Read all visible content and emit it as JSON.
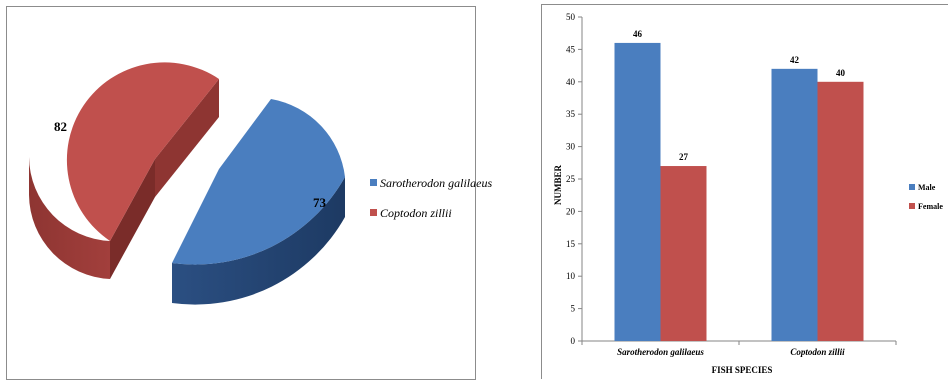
{
  "chart_data": [
    {
      "type": "pie",
      "slices": [
        {
          "label": "Sarotherodon galilaeus",
          "value": 73,
          "color": "#4a7ebf"
        },
        {
          "label": "Coptodon zillii",
          "value": 82,
          "color": "#c0504d"
        }
      ],
      "legend_position": "right",
      "three_d": true,
      "exploded": true
    },
    {
      "type": "bar",
      "categories": [
        "Sarotherodon galilaeus",
        "Coptodon zillii"
      ],
      "series": [
        {
          "name": "Male",
          "values": [
            46,
            42
          ],
          "color": "#4a7ebf"
        },
        {
          "name": "Female",
          "values": [
            27,
            40
          ],
          "color": "#c0504d"
        }
      ],
      "xlabel": "FISH SPECIES",
      "ylabel": "NUMBER",
      "ylim": [
        0,
        50
      ],
      "yticks": [
        0,
        5,
        10,
        15,
        20,
        25,
        30,
        35,
        40,
        45,
        50
      ],
      "grid": false,
      "legend_position": "right"
    }
  ]
}
